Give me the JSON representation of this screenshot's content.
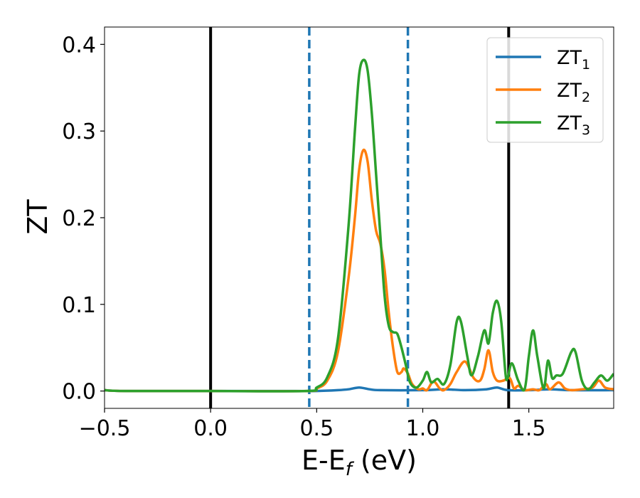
{
  "chart_data": {
    "type": "line",
    "title": "",
    "xlabel": {
      "base": "E-E",
      "sub": "f",
      "suffix": " (eV)"
    },
    "ylabel": "ZT",
    "xlim": [
      -0.5,
      1.9
    ],
    "ylim": [
      -0.02,
      0.42
    ],
    "xticks": [
      -0.5,
      0.0,
      0.5,
      1.0,
      1.5
    ],
    "xtick_labels": [
      "−0.5",
      "0.0",
      "0.5",
      "1.0",
      "1.5"
    ],
    "yticks": [
      0.0,
      0.1,
      0.2,
      0.3,
      0.4
    ],
    "ytick_labels": [
      "0.0",
      "0.1",
      "0.2",
      "0.3",
      "0.4"
    ],
    "grid": false,
    "legend_position": "top-right",
    "vertical_lines": [
      {
        "x": 0.0,
        "style": "solid",
        "color": "#000000"
      },
      {
        "x": 0.465,
        "style": "dashed",
        "color": "#1f77b4"
      },
      {
        "x": 0.93,
        "style": "dashed",
        "color": "#1f77b4"
      },
      {
        "x": 1.405,
        "style": "solid",
        "color": "#000000"
      }
    ],
    "series": [
      {
        "name": "ZT",
        "name_sub": "1",
        "color": "#1f77b4",
        "points": [
          [
            -0.5,
            0.001
          ],
          [
            -0.4,
            0.0
          ],
          [
            0.0,
            0.0
          ],
          [
            0.4,
            0.0
          ],
          [
            0.5,
            0.0
          ],
          [
            0.6,
            0.001
          ],
          [
            0.65,
            0.002
          ],
          [
            0.7,
            0.004
          ],
          [
            0.75,
            0.002
          ],
          [
            0.8,
            0.001
          ],
          [
            1.0,
            0.001
          ],
          [
            1.1,
            0.002
          ],
          [
            1.2,
            0.001
          ],
          [
            1.3,
            0.002
          ],
          [
            1.35,
            0.004
          ],
          [
            1.4,
            0.001
          ],
          [
            1.5,
            0.001
          ],
          [
            1.6,
            0.002
          ],
          [
            1.7,
            0.001
          ],
          [
            1.9,
            0.001
          ]
        ]
      },
      {
        "name": "ZT",
        "name_sub": "2",
        "color": "#ff7f0e",
        "points": [
          [
            -0.5,
            0.001
          ],
          [
            -0.4,
            0.0
          ],
          [
            0.0,
            0.0
          ],
          [
            0.45,
            0.0
          ],
          [
            0.5,
            0.003
          ],
          [
            0.55,
            0.012
          ],
          [
            0.6,
            0.045
          ],
          [
            0.65,
            0.13
          ],
          [
            0.68,
            0.2
          ],
          [
            0.7,
            0.255
          ],
          [
            0.72,
            0.278
          ],
          [
            0.74,
            0.265
          ],
          [
            0.76,
            0.22
          ],
          [
            0.78,
            0.185
          ],
          [
            0.8,
            0.17
          ],
          [
            0.82,
            0.14
          ],
          [
            0.84,
            0.09
          ],
          [
            0.86,
            0.05
          ],
          [
            0.88,
            0.022
          ],
          [
            0.9,
            0.022
          ],
          [
            0.91,
            0.026
          ],
          [
            0.93,
            0.02
          ],
          [
            0.95,
            0.008
          ],
          [
            0.98,
            0.002
          ],
          [
            1.0,
            0.003
          ],
          [
            1.02,
            0.001
          ],
          [
            1.05,
            0.011
          ],
          [
            1.08,
            0.003
          ],
          [
            1.1,
            0.001
          ],
          [
            1.13,
            0.008
          ],
          [
            1.16,
            0.022
          ],
          [
            1.2,
            0.034
          ],
          [
            1.24,
            0.015
          ],
          [
            1.27,
            0.012
          ],
          [
            1.29,
            0.025
          ],
          [
            1.31,
            0.047
          ],
          [
            1.33,
            0.022
          ],
          [
            1.35,
            0.012
          ],
          [
            1.38,
            0.012
          ],
          [
            1.41,
            0.015
          ],
          [
            1.43,
            0.003
          ],
          [
            1.45,
            0.006
          ],
          [
            1.48,
            0.001
          ],
          [
            1.52,
            0.002
          ],
          [
            1.55,
            0.001
          ],
          [
            1.58,
            0.008
          ],
          [
            1.6,
            0.002
          ],
          [
            1.64,
            0.01
          ],
          [
            1.67,
            0.003
          ],
          [
            1.7,
            0.001
          ],
          [
            1.75,
            0.002
          ],
          [
            1.8,
            0.004
          ],
          [
            1.83,
            0.012
          ],
          [
            1.86,
            0.004
          ],
          [
            1.9,
            0.002
          ]
        ]
      },
      {
        "name": "ZT",
        "name_sub": "3",
        "color": "#2ca02c",
        "points": [
          [
            -0.5,
            0.001
          ],
          [
            -0.4,
            0.0
          ],
          [
            0.0,
            0.0
          ],
          [
            0.45,
            0.0
          ],
          [
            0.5,
            0.004
          ],
          [
            0.55,
            0.016
          ],
          [
            0.6,
            0.06
          ],
          [
            0.65,
            0.19
          ],
          [
            0.68,
            0.3
          ],
          [
            0.7,
            0.365
          ],
          [
            0.72,
            0.382
          ],
          [
            0.74,
            0.37
          ],
          [
            0.76,
            0.32
          ],
          [
            0.78,
            0.25
          ],
          [
            0.8,
            0.18
          ],
          [
            0.82,
            0.11
          ],
          [
            0.84,
            0.075
          ],
          [
            0.86,
            0.068
          ],
          [
            0.88,
            0.066
          ],
          [
            0.9,
            0.05
          ],
          [
            0.92,
            0.03
          ],
          [
            0.94,
            0.01
          ],
          [
            0.97,
            0.004
          ],
          [
            1.0,
            0.012
          ],
          [
            1.02,
            0.022
          ],
          [
            1.04,
            0.01
          ],
          [
            1.07,
            0.014
          ],
          [
            1.1,
            0.008
          ],
          [
            1.13,
            0.03
          ],
          [
            1.16,
            0.08
          ],
          [
            1.18,
            0.08
          ],
          [
            1.21,
            0.04
          ],
          [
            1.23,
            0.018
          ],
          [
            1.26,
            0.04
          ],
          [
            1.29,
            0.07
          ],
          [
            1.31,
            0.055
          ],
          [
            1.33,
            0.09
          ],
          [
            1.35,
            0.104
          ],
          [
            1.37,
            0.08
          ],
          [
            1.39,
            0.02
          ],
          [
            1.4,
            0.015
          ],
          [
            1.42,
            0.032
          ],
          [
            1.45,
            0.012
          ],
          [
            1.48,
            0.002
          ],
          [
            1.5,
            0.04
          ],
          [
            1.52,
            0.07
          ],
          [
            1.54,
            0.04
          ],
          [
            1.57,
            0.003
          ],
          [
            1.59,
            0.035
          ],
          [
            1.61,
            0.015
          ],
          [
            1.63,
            0.018
          ],
          [
            1.66,
            0.02
          ],
          [
            1.7,
            0.045
          ],
          [
            1.72,
            0.045
          ],
          [
            1.75,
            0.012
          ],
          [
            1.78,
            0.002
          ],
          [
            1.81,
            0.01
          ],
          [
            1.84,
            0.018
          ],
          [
            1.87,
            0.012
          ],
          [
            1.9,
            0.02
          ]
        ]
      }
    ]
  }
}
